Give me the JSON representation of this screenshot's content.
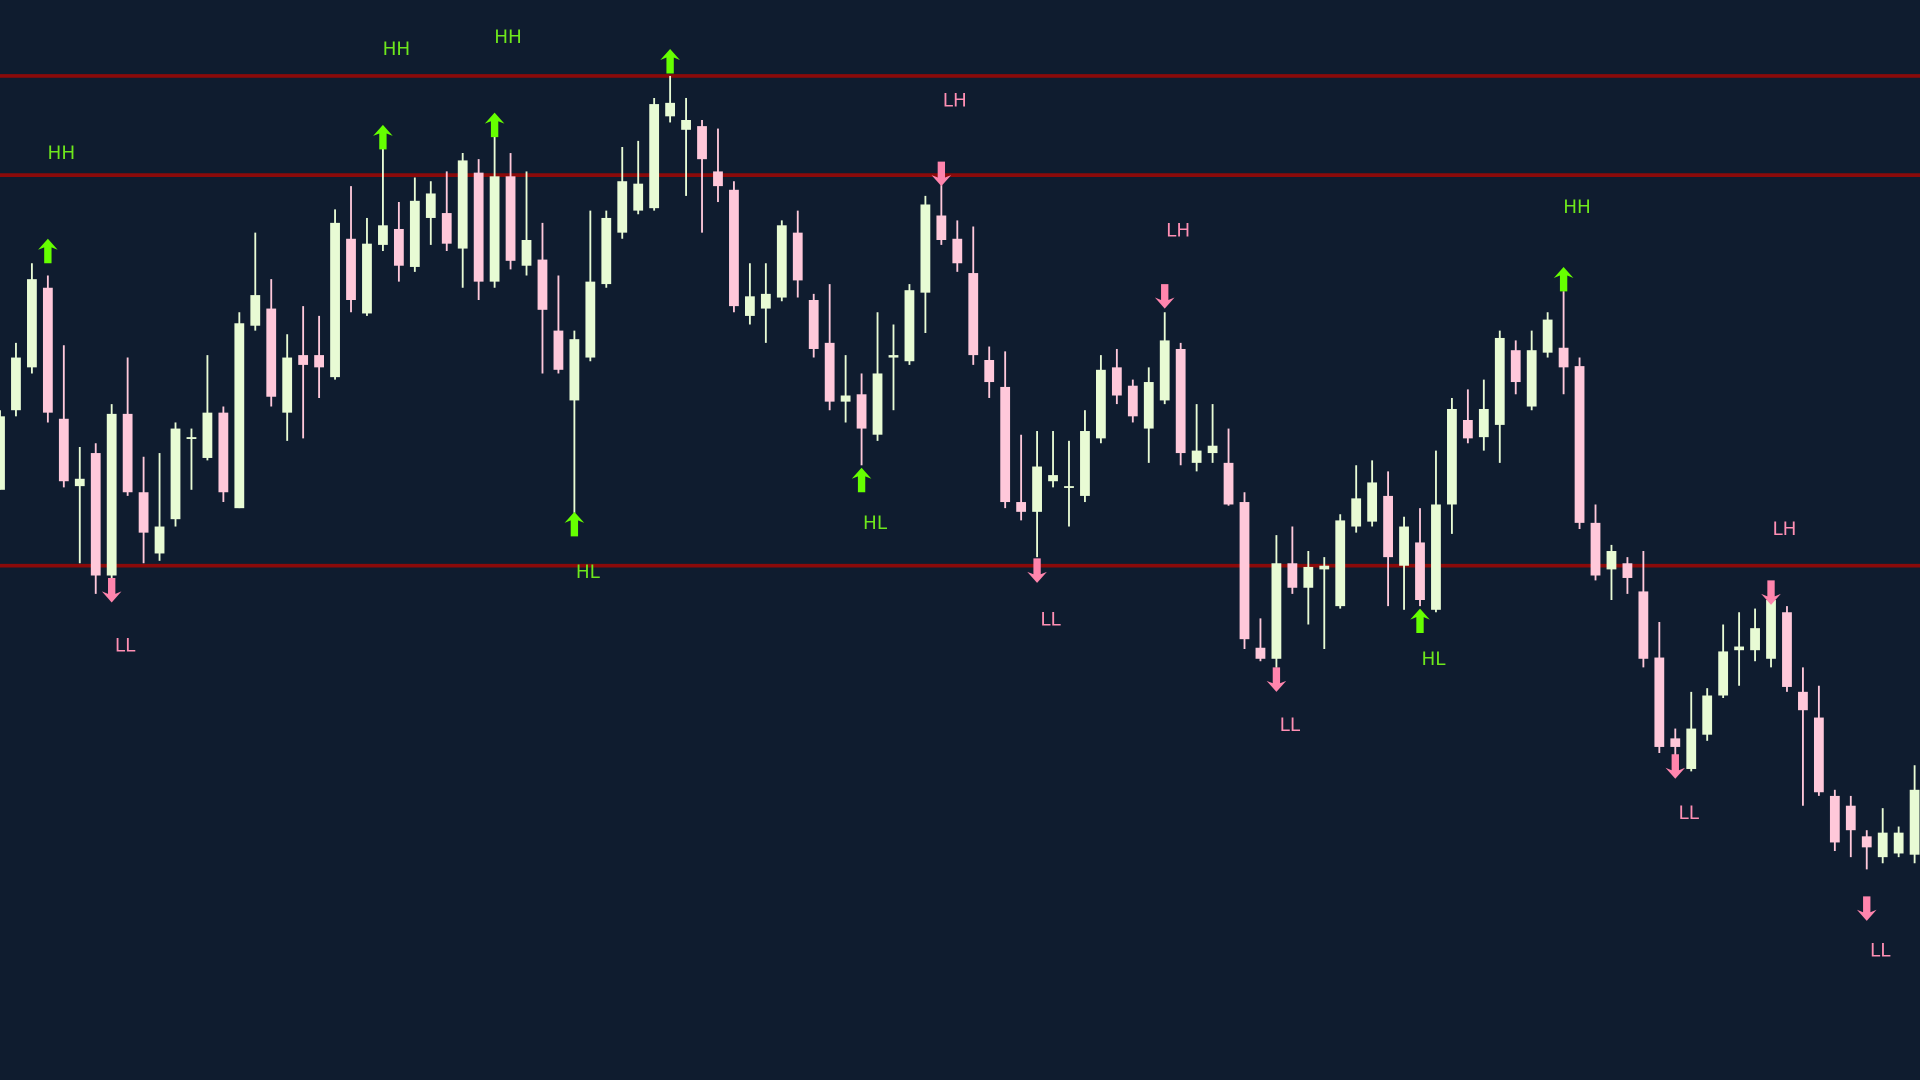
{
  "chart_data": {
    "type": "candlestick",
    "title": "",
    "xlabel": "",
    "ylabel": "",
    "ylim": [
      18,
      900
    ],
    "grid": false,
    "legend": "none",
    "colors": {
      "background": "#0f1c2f",
      "bullish": "#e8fbd4",
      "bearish": "#ffc8da",
      "level_line": "#8b0a0a",
      "up_marker": "#66ff00",
      "down_marker": "#ff85ad",
      "up_label": "#6ee81c",
      "down_label": "#ff8fb4"
    },
    "candles_ohlc": [
      [
        500,
        565,
        500,
        560
      ],
      [
        565,
        620,
        560,
        608
      ],
      [
        600,
        685,
        595,
        672
      ],
      [
        665,
        675,
        555,
        563
      ],
      [
        558,
        618,
        502,
        507
      ],
      [
        503,
        535,
        440,
        509
      ],
      [
        530,
        538,
        415,
        430
      ],
      [
        430,
        570,
        415,
        562
      ],
      [
        562,
        608,
        495,
        498
      ],
      [
        498,
        527,
        440,
        465
      ],
      [
        448,
        530,
        442,
        470
      ],
      [
        476,
        555,
        470,
        550
      ],
      [
        543,
        550,
        500,
        543
      ],
      [
        526,
        610,
        524,
        563
      ],
      [
        563,
        568,
        490,
        498
      ],
      [
        485,
        645,
        485,
        636
      ],
      [
        634,
        710,
        630,
        659
      ],
      [
        648,
        672,
        568,
        576
      ],
      [
        563,
        627,
        540,
        608
      ],
      [
        610,
        650,
        542,
        602
      ],
      [
        610,
        642,
        575,
        600
      ],
      [
        592,
        729,
        590,
        718
      ],
      [
        705,
        748,
        645,
        655
      ],
      [
        644,
        722,
        642,
        701
      ],
      [
        700,
        790,
        695,
        716
      ],
      [
        713,
        735,
        670,
        683
      ],
      [
        682,
        755,
        678,
        736
      ],
      [
        722,
        752,
        700,
        742
      ],
      [
        726,
        760,
        695,
        701
      ],
      [
        697,
        775,
        665,
        769
      ],
      [
        759,
        770,
        655,
        670
      ],
      [
        670,
        795,
        665,
        756
      ],
      [
        756,
        775,
        680,
        687
      ],
      [
        683,
        760,
        675,
        704
      ],
      [
        688,
        718,
        595,
        647
      ],
      [
        630,
        675,
        595,
        598
      ],
      [
        573,
        630,
        480,
        623
      ],
      [
        608,
        728,
        605,
        670
      ],
      [
        668,
        728,
        665,
        722
      ],
      [
        710,
        780,
        705,
        752
      ],
      [
        728,
        785,
        725,
        750
      ],
      [
        730,
        820,
        728,
        815
      ],
      [
        805,
        838,
        800,
        816
      ],
      [
        794,
        820,
        740,
        802
      ],
      [
        797,
        802,
        710,
        770
      ],
      [
        760,
        795,
        735,
        748
      ],
      [
        745,
        752,
        645,
        650
      ],
      [
        642,
        685,
        635,
        658
      ],
      [
        648,
        685,
        620,
        660
      ],
      [
        657,
        720,
        654,
        716
      ],
      [
        710,
        728,
        657,
        671
      ],
      [
        655,
        660,
        608,
        615
      ],
      [
        620,
        668,
        565,
        572
      ],
      [
        572,
        610,
        555,
        577
      ],
      [
        578,
        595,
        520,
        550
      ],
      [
        545,
        645,
        540,
        595
      ],
      [
        608,
        635,
        565,
        610
      ],
      [
        605,
        668,
        602,
        663
      ],
      [
        661,
        740,
        628,
        733
      ],
      [
        724,
        750,
        700,
        704
      ],
      [
        705,
        720,
        678,
        685
      ],
      [
        677,
        715,
        602,
        610
      ],
      [
        606,
        617,
        575,
        588
      ],
      [
        584,
        613,
        485,
        490
      ],
      [
        490,
        545,
        475,
        482
      ],
      [
        482,
        548,
        445,
        519
      ],
      [
        507,
        548,
        502,
        512
      ],
      [
        503,
        540,
        470,
        503
      ],
      [
        495,
        565,
        490,
        548
      ],
      [
        542,
        610,
        538,
        598
      ],
      [
        600,
        615,
        570,
        577
      ],
      [
        585,
        590,
        555,
        560
      ],
      [
        550,
        600,
        522,
        588
      ],
      [
        573,
        645,
        570,
        622
      ],
      [
        615,
        620,
        520,
        530
      ],
      [
        522,
        570,
        515,
        532
      ],
      [
        530,
        570,
        522,
        536
      ],
      [
        522,
        550,
        487,
        488
      ],
      [
        490,
        498,
        370,
        378
      ],
      [
        371,
        395,
        360,
        362
      ],
      [
        362,
        463,
        355,
        440
      ],
      [
        440,
        470,
        415,
        420
      ],
      [
        420,
        450,
        390,
        437
      ],
      [
        435,
        445,
        370,
        438
      ],
      [
        405,
        480,
        403,
        475
      ],
      [
        470,
        520,
        465,
        493
      ],
      [
        474,
        524,
        470,
        506
      ],
      [
        495,
        515,
        405,
        445
      ],
      [
        438,
        478,
        402,
        470
      ],
      [
        457,
        485,
        405,
        410
      ],
      [
        402,
        532,
        400,
        488
      ],
      [
        488,
        575,
        464,
        566
      ],
      [
        557,
        582,
        538,
        542
      ],
      [
        543,
        590,
        532,
        566
      ],
      [
        553,
        630,
        522,
        624
      ],
      [
        614,
        622,
        578,
        588
      ],
      [
        568,
        630,
        565,
        614
      ],
      [
        612,
        645,
        608,
        639
      ],
      [
        616,
        662,
        578,
        600
      ],
      [
        601,
        608,
        468,
        473
      ],
      [
        473,
        488,
        426,
        430
      ],
      [
        435,
        455,
        410,
        450
      ],
      [
        440,
        445,
        415,
        428
      ],
      [
        417,
        450,
        355,
        362
      ],
      [
        363,
        392,
        285,
        290
      ],
      [
        297,
        305,
        265,
        290
      ],
      [
        272,
        335,
        270,
        305
      ],
      [
        300,
        338,
        295,
        332
      ],
      [
        332,
        390,
        330,
        368
      ],
      [
        369,
        400,
        340,
        372
      ],
      [
        369,
        403,
        360,
        387
      ],
      [
        362,
        418,
        355,
        410
      ],
      [
        400,
        405,
        335,
        339
      ],
      [
        335,
        355,
        242,
        320
      ],
      [
        314,
        340,
        250,
        253
      ],
      [
        250,
        255,
        205,
        212
      ],
      [
        242,
        250,
        200,
        222
      ],
      [
        217,
        222,
        190,
        208
      ],
      [
        200,
        240,
        195,
        220
      ],
      [
        203,
        225,
        200,
        220
      ],
      [
        202,
        275,
        195,
        255
      ]
    ],
    "levels": [
      838,
      757,
      438
    ],
    "swing_markers": [
      {
        "candle": 3,
        "direction": "up",
        "arrow_price": 705,
        "label_price": 775,
        "label": "HH"
      },
      {
        "candle": 7,
        "direction": "down",
        "arrow_price": 408,
        "label_price": 373,
        "label": "LL"
      },
      {
        "candle": 24,
        "direction": "up",
        "arrow_price": 798,
        "label_price": 860,
        "label": "HH"
      },
      {
        "candle": 31,
        "direction": "up",
        "arrow_price": 808,
        "label_price": 870,
        "label": "HH"
      },
      {
        "candle": 36,
        "direction": "up",
        "arrow_price": 482,
        "label_price": 433,
        "label": "HL"
      },
      {
        "candle": 42,
        "direction": "up",
        "arrow_price": 860,
        "label_price": null,
        "label": ""
      },
      {
        "candle": 54,
        "direction": "up",
        "arrow_price": 518,
        "label_price": 473,
        "label": "HL"
      },
      {
        "candle": 59,
        "direction": "down",
        "arrow_price": 748,
        "label_price": 818,
        "label": "LH"
      },
      {
        "candle": 65,
        "direction": "down",
        "arrow_price": 424,
        "label_price": 394,
        "label": "LL"
      },
      {
        "candle": 73,
        "direction": "down",
        "arrow_price": 648,
        "label_price": 712,
        "label": "LH"
      },
      {
        "candle": 80,
        "direction": "down",
        "arrow_price": 335,
        "label_price": 308,
        "label": "LL"
      },
      {
        "candle": 89,
        "direction": "up",
        "arrow_price": 403,
        "label_price": 362,
        "label": "HL"
      },
      {
        "candle": 98,
        "direction": "up",
        "arrow_price": 682,
        "label_price": 731,
        "label": "HH"
      },
      {
        "candle": 105,
        "direction": "down",
        "arrow_price": 264,
        "label_price": 236,
        "label": "LL"
      },
      {
        "candle": 111,
        "direction": "down",
        "arrow_price": 406,
        "label_price": 468,
        "label": "LH"
      },
      {
        "candle": 117,
        "direction": "down",
        "arrow_price": 148,
        "label_price": 124,
        "label": "LL"
      }
    ]
  }
}
